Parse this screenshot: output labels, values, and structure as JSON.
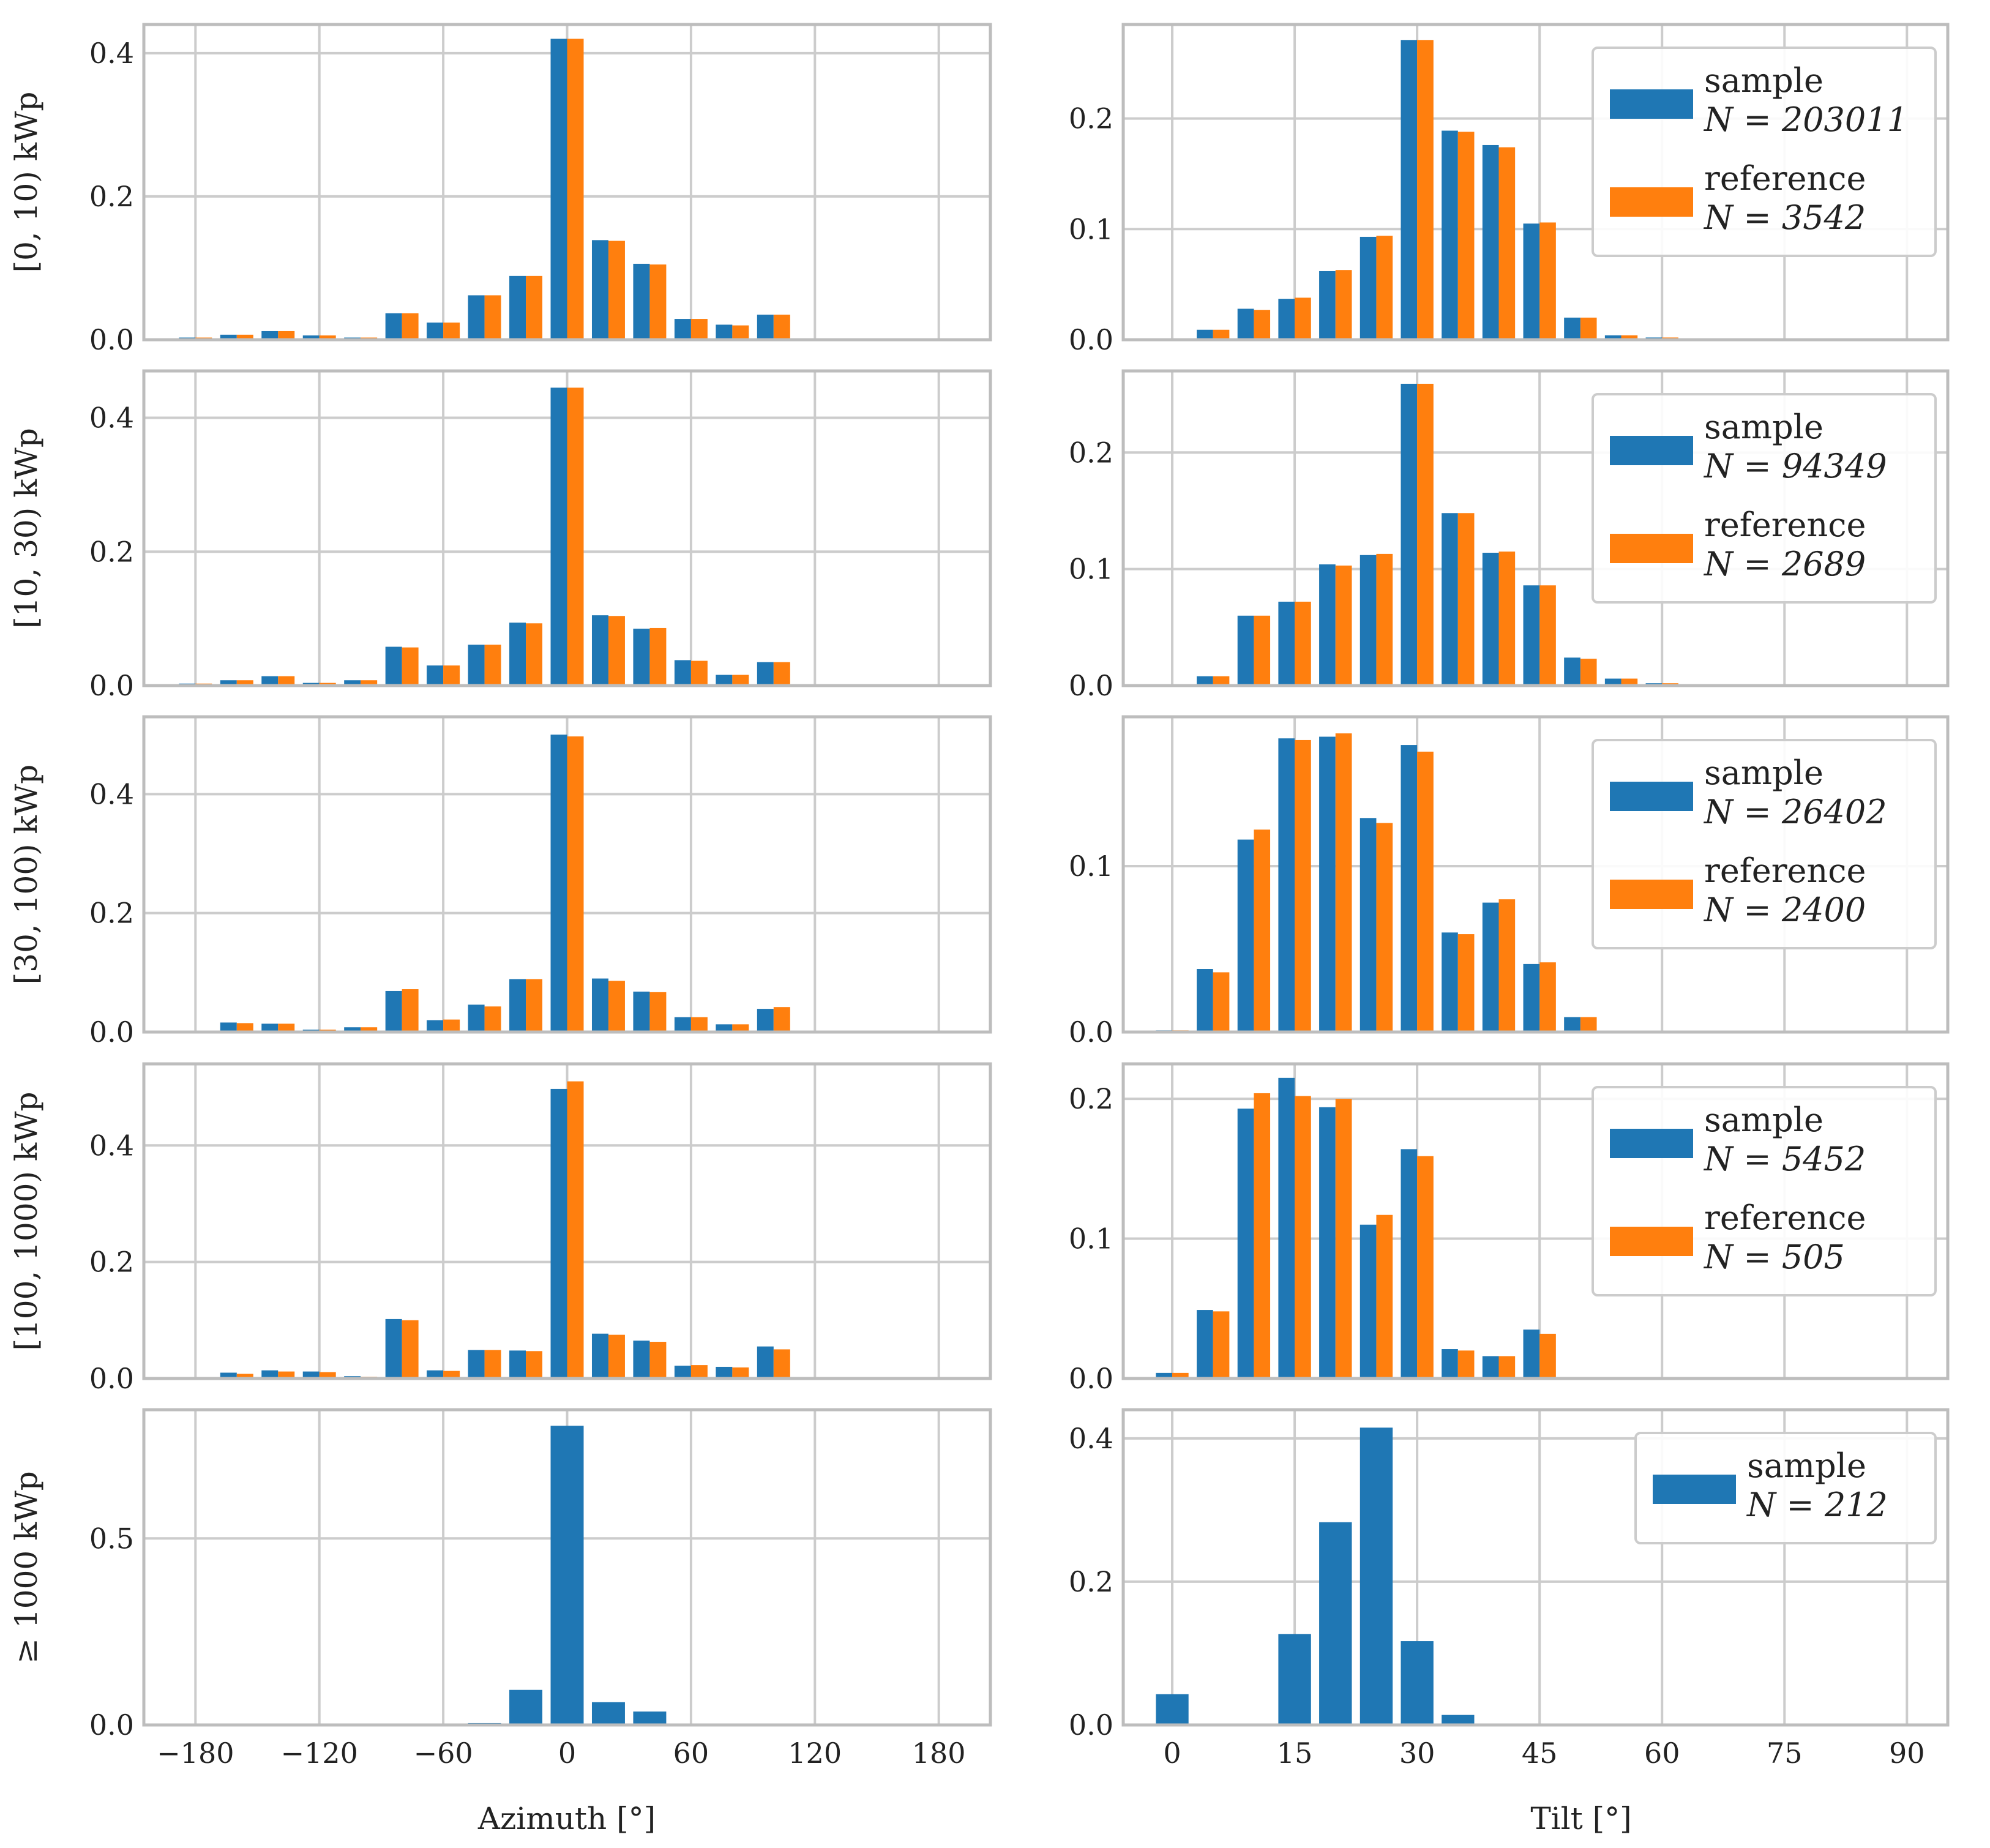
{
  "colors": {
    "sample": "#1f77b4",
    "reference": "#ff7f0e",
    "grid": "#cccccc",
    "frame": "#bdbdbd"
  },
  "labels": {
    "xlabel_left": "Azimuth [°]",
    "xlabel_right": "Tilt [°]",
    "series_sample": "sample",
    "series_reference": "reference"
  },
  "chart_data": [
    {
      "type": "bar",
      "panel": "azimuth",
      "row_label": "[0, 10) kWp",
      "xlabel": "Azimuth [°]",
      "xlim": [
        -205,
        205
      ],
      "ylim": [
        0,
        0.44
      ],
      "xticks": [
        -180,
        -120,
        -60,
        0,
        60,
        120,
        180
      ],
      "yticks": [
        0.0,
        0.2,
        0.4
      ],
      "x": [
        -180,
        -160,
        -140,
        -120,
        -100,
        -80,
        -60,
        -40,
        -20,
        0,
        20,
        40,
        60,
        80,
        100
      ],
      "series": [
        {
          "name": "sample",
          "values": [
            0.003,
            0.007,
            0.012,
            0.006,
            0.003,
            0.037,
            0.024,
            0.062,
            0.089,
            0.42,
            0.139,
            0.106,
            0.029,
            0.021,
            0.035
          ]
        },
        {
          "name": "reference",
          "values": [
            0.003,
            0.007,
            0.012,
            0.006,
            0.003,
            0.037,
            0.024,
            0.062,
            0.089,
            0.42,
            0.138,
            0.105,
            0.029,
            0.02,
            0.035
          ]
        }
      ]
    },
    {
      "type": "bar",
      "panel": "tilt",
      "row_label": "[0, 10) kWp",
      "xlabel": "Tilt [°]",
      "xlim": [
        -6,
        95
      ],
      "ylim": [
        0,
        0.285
      ],
      "xticks": [
        0,
        15,
        30,
        45,
        60,
        75,
        90
      ],
      "yticks": [
        0.0,
        0.1,
        0.2
      ],
      "x": [
        0,
        5,
        10,
        15,
        20,
        25,
        30,
        35,
        40,
        45,
        50,
        55,
        60
      ],
      "series": [
        {
          "name": "sample",
          "values": [
            0.0,
            0.009,
            0.028,
            0.037,
            0.062,
            0.093,
            0.271,
            0.189,
            0.176,
            0.105,
            0.02,
            0.004,
            0.002
          ]
        },
        {
          "name": "reference",
          "values": [
            0.0,
            0.009,
            0.027,
            0.038,
            0.063,
            0.094,
            0.271,
            0.188,
            0.174,
            0.106,
            0.02,
            0.004,
            0.002
          ]
        }
      ],
      "legend": {
        "entries": [
          {
            "label": "sample",
            "count": "N = 203011"
          },
          {
            "label": "reference",
            "count": "N = 3542"
          }
        ],
        "position": "top-right"
      }
    },
    {
      "type": "bar",
      "panel": "azimuth",
      "row_label": "[10, 30) kWp",
      "xlabel": "Azimuth [°]",
      "xlim": [
        -205,
        205
      ],
      "ylim": [
        0,
        0.47
      ],
      "xticks": [
        -180,
        -120,
        -60,
        0,
        60,
        120,
        180
      ],
      "yticks": [
        0.0,
        0.2,
        0.4
      ],
      "x": [
        -180,
        -160,
        -140,
        -120,
        -100,
        -80,
        -60,
        -40,
        -20,
        0,
        20,
        40,
        60,
        80,
        100
      ],
      "series": [
        {
          "name": "sample",
          "values": [
            0.003,
            0.008,
            0.014,
            0.004,
            0.008,
            0.058,
            0.03,
            0.061,
            0.094,
            0.445,
            0.105,
            0.085,
            0.038,
            0.016,
            0.035
          ]
        },
        {
          "name": "reference",
          "values": [
            0.003,
            0.008,
            0.014,
            0.004,
            0.008,
            0.057,
            0.03,
            0.061,
            0.093,
            0.445,
            0.104,
            0.086,
            0.037,
            0.016,
            0.035
          ]
        }
      ]
    },
    {
      "type": "bar",
      "panel": "tilt",
      "row_label": "[10, 30) kWp",
      "xlabel": "Tilt [°]",
      "xlim": [
        -6,
        95
      ],
      "ylim": [
        0,
        0.27
      ],
      "xticks": [
        0,
        15,
        30,
        45,
        60,
        75,
        90
      ],
      "yticks": [
        0.0,
        0.1,
        0.2
      ],
      "x": [
        0,
        5,
        10,
        15,
        20,
        25,
        30,
        35,
        40,
        45,
        50,
        55,
        60
      ],
      "series": [
        {
          "name": "sample",
          "values": [
            0.0,
            0.008,
            0.06,
            0.072,
            0.104,
            0.112,
            0.259,
            0.148,
            0.114,
            0.086,
            0.024,
            0.006,
            0.002
          ]
        },
        {
          "name": "reference",
          "values": [
            0.0,
            0.008,
            0.06,
            0.072,
            0.103,
            0.113,
            0.259,
            0.148,
            0.115,
            0.086,
            0.023,
            0.006,
            0.002
          ]
        }
      ],
      "legend": {
        "entries": [
          {
            "label": "sample",
            "count": "N = 94349"
          },
          {
            "label": "reference",
            "count": "N = 2689"
          }
        ],
        "position": "top-right"
      }
    },
    {
      "type": "bar",
      "panel": "azimuth",
      "row_label": "[30, 100) kWp",
      "xlabel": "Azimuth [°]",
      "xlim": [
        -205,
        205
      ],
      "ylim": [
        0,
        0.53
      ],
      "xticks": [
        -180,
        -120,
        -60,
        0,
        60,
        120,
        180
      ],
      "yticks": [
        0.0,
        0.2,
        0.4
      ],
      "x": [
        -160,
        -140,
        -120,
        -100,
        -80,
        -60,
        -40,
        -20,
        0,
        20,
        40,
        60,
        80,
        100,
        140
      ],
      "series": [
        {
          "name": "sample",
          "values": [
            0.016,
            0.014,
            0.004,
            0.008,
            0.069,
            0.02,
            0.046,
            0.089,
            0.5,
            0.09,
            0.068,
            0.025,
            0.013,
            0.039,
            0.002
          ]
        },
        {
          "name": "reference",
          "values": [
            0.015,
            0.014,
            0.004,
            0.008,
            0.072,
            0.021,
            0.043,
            0.089,
            0.497,
            0.086,
            0.067,
            0.025,
            0.013,
            0.042,
            0.0
          ]
        }
      ]
    },
    {
      "type": "bar",
      "panel": "tilt",
      "row_label": "[30, 100) kWp",
      "xlabel": "Tilt [°]",
      "xlim": [
        -6,
        95
      ],
      "ylim": [
        0,
        0.19
      ],
      "xticks": [
        0,
        15,
        30,
        45,
        60,
        75,
        90
      ],
      "yticks": [
        0.0,
        0.1
      ],
      "x": [
        0,
        5,
        10,
        15,
        20,
        25,
        30,
        35,
        40,
        45,
        50
      ],
      "series": [
        {
          "name": "sample",
          "values": [
            0.001,
            0.038,
            0.116,
            0.177,
            0.178,
            0.129,
            0.173,
            0.06,
            0.078,
            0.041,
            0.009
          ]
        },
        {
          "name": "reference",
          "values": [
            0.001,
            0.036,
            0.122,
            0.176,
            0.18,
            0.126,
            0.169,
            0.059,
            0.08,
            0.042,
            0.009
          ]
        }
      ],
      "legend": {
        "entries": [
          {
            "label": "sample",
            "count": "N = 26402"
          },
          {
            "label": "reference",
            "count": "N = 2400"
          }
        ],
        "position": "top-right"
      }
    },
    {
      "type": "bar",
      "panel": "azimuth",
      "row_label": "[100, 1000) kWp",
      "xlabel": "Azimuth [°]",
      "xlim": [
        -205,
        205
      ],
      "ylim": [
        0,
        0.54
      ],
      "xticks": [
        -180,
        -120,
        -60,
        0,
        60,
        120,
        180
      ],
      "yticks": [
        0.0,
        0.2,
        0.4
      ],
      "x": [
        -160,
        -140,
        -120,
        -100,
        -80,
        -60,
        -40,
        -20,
        0,
        20,
        40,
        60,
        80,
        100,
        120
      ],
      "series": [
        {
          "name": "sample",
          "values": [
            0.01,
            0.014,
            0.012,
            0.004,
            0.102,
            0.014,
            0.049,
            0.048,
            0.497,
            0.077,
            0.065,
            0.022,
            0.02,
            0.055,
            0.002
          ]
        },
        {
          "name": "reference",
          "values": [
            0.008,
            0.012,
            0.011,
            0.003,
            0.1,
            0.013,
            0.049,
            0.047,
            0.51,
            0.075,
            0.063,
            0.023,
            0.019,
            0.05,
            0.0
          ]
        }
      ]
    },
    {
      "type": "bar",
      "panel": "tilt",
      "row_label": "[100, 1000) kWp",
      "xlabel": "Tilt [°]",
      "xlim": [
        -6,
        95
      ],
      "ylim": [
        0,
        0.225
      ],
      "xticks": [
        0,
        15,
        30,
        45,
        60,
        75,
        90
      ],
      "yticks": [
        0.0,
        0.1,
        0.2
      ],
      "x": [
        0,
        5,
        10,
        15,
        20,
        25,
        30,
        35,
        40,
        45
      ],
      "series": [
        {
          "name": "sample",
          "values": [
            0.004,
            0.049,
            0.193,
            0.215,
            0.194,
            0.11,
            0.164,
            0.021,
            0.016,
            0.035
          ]
        },
        {
          "name": "reference",
          "values": [
            0.004,
            0.048,
            0.204,
            0.202,
            0.2,
            0.117,
            0.159,
            0.02,
            0.016,
            0.032
          ]
        }
      ],
      "legend": {
        "entries": [
          {
            "label": "sample",
            "count": "N = 5452"
          },
          {
            "label": "reference",
            "count": "N = 505"
          }
        ],
        "position": "top-right"
      }
    },
    {
      "type": "bar",
      "panel": "azimuth",
      "row_label": "≥ 1000 kWp",
      "xlabel": "Azimuth [°]",
      "xlim": [
        -205,
        205
      ],
      "ylim": [
        0,
        0.845
      ],
      "xticks": [
        -180,
        -120,
        -60,
        0,
        60,
        120,
        180
      ],
      "yticks": [
        0.0,
        0.5
      ],
      "x": [
        -40,
        -20,
        0,
        20,
        40
      ],
      "series": [
        {
          "name": "sample",
          "values": [
            0.005,
            0.094,
            0.802,
            0.061,
            0.036
          ]
        }
      ]
    },
    {
      "type": "bar",
      "panel": "tilt",
      "row_label": "≥ 1000 kWp",
      "xlabel": "Tilt [°]",
      "xlim": [
        -6,
        95
      ],
      "ylim": [
        0,
        0.44
      ],
      "xticks": [
        0,
        15,
        30,
        45,
        60,
        75,
        90
      ],
      "yticks": [
        0.0,
        0.2,
        0.4
      ],
      "x": [
        0,
        15,
        20,
        25,
        30,
        35
      ],
      "series": [
        {
          "name": "sample",
          "values": [
            0.043,
            0.127,
            0.283,
            0.415,
            0.117,
            0.014
          ]
        }
      ],
      "legend": {
        "entries": [
          {
            "label": "sample",
            "count": "N = 212"
          }
        ],
        "position": "top-right"
      }
    }
  ]
}
